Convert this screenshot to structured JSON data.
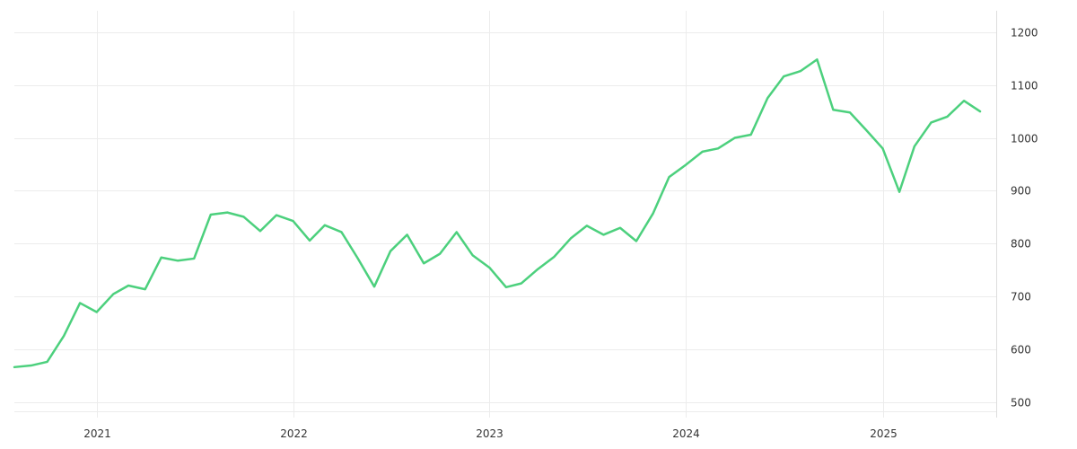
{
  "chart_data": {
    "type": "line",
    "title": "",
    "xlabel": "",
    "ylabel": "",
    "y_axis_side": "right",
    "grid": true,
    "ylim": [
      470,
      1240
    ],
    "xlim": [
      "2020-08-01",
      "2025-07-31"
    ],
    "yticks": [
      500,
      600,
      700,
      800,
      900,
      1000,
      1100,
      1200
    ],
    "xticks": [
      {
        "date": "2021-01-01",
        "label": "2021"
      },
      {
        "date": "2022-01-01",
        "label": "2022"
      },
      {
        "date": "2023-01-01",
        "label": "2023"
      },
      {
        "date": "2024-01-01",
        "label": "2024"
      },
      {
        "date": "2025-01-01",
        "label": "2025"
      }
    ],
    "series": [
      {
        "color": "#4cd07d",
        "x": [
          "2020-08",
          "2020-09",
          "2020-10",
          "2020-11",
          "2020-12",
          "2021-01",
          "2021-02",
          "2021-03",
          "2021-04",
          "2021-05",
          "2021-06",
          "2021-07",
          "2021-08",
          "2021-09",
          "2021-10",
          "2021-11",
          "2021-12",
          "2022-01",
          "2022-02",
          "2022-03",
          "2022-04",
          "2022-05",
          "2022-06",
          "2022-07",
          "2022-08",
          "2022-09",
          "2022-10",
          "2022-11",
          "2022-12",
          "2023-01",
          "2023-02",
          "2023-03",
          "2023-04",
          "2023-05",
          "2023-06",
          "2023-07",
          "2023-08",
          "2023-09",
          "2023-10",
          "2023-11",
          "2023-12",
          "2024-01",
          "2024-02",
          "2024-03",
          "2024-04",
          "2024-05",
          "2024-06",
          "2024-07",
          "2024-08",
          "2024-09",
          "2024-10",
          "2024-11",
          "2024-12",
          "2025-01",
          "2025-02",
          "2025-03",
          "2025-04",
          "2025-05",
          "2025-06",
          "2025-07"
        ],
        "values": [
          567,
          570,
          577,
          626,
          688,
          671,
          705,
          721,
          714,
          774,
          768,
          772,
          855,
          859,
          851,
          824,
          854,
          843,
          806,
          835,
          822,
          773,
          719,
          786,
          817,
          763,
          781,
          822,
          778,
          755,
          718,
          725,
          752,
          775,
          810,
          834,
          817,
          830,
          805,
          857,
          926,
          949,
          974,
          980,
          1000,
          1006,
          1075,
          1116,
          1126,
          1148,
          1053,
          1048,
          1015,
          980,
          898,
          984,
          1029,
          1040,
          1070,
          1050
        ]
      }
    ]
  }
}
